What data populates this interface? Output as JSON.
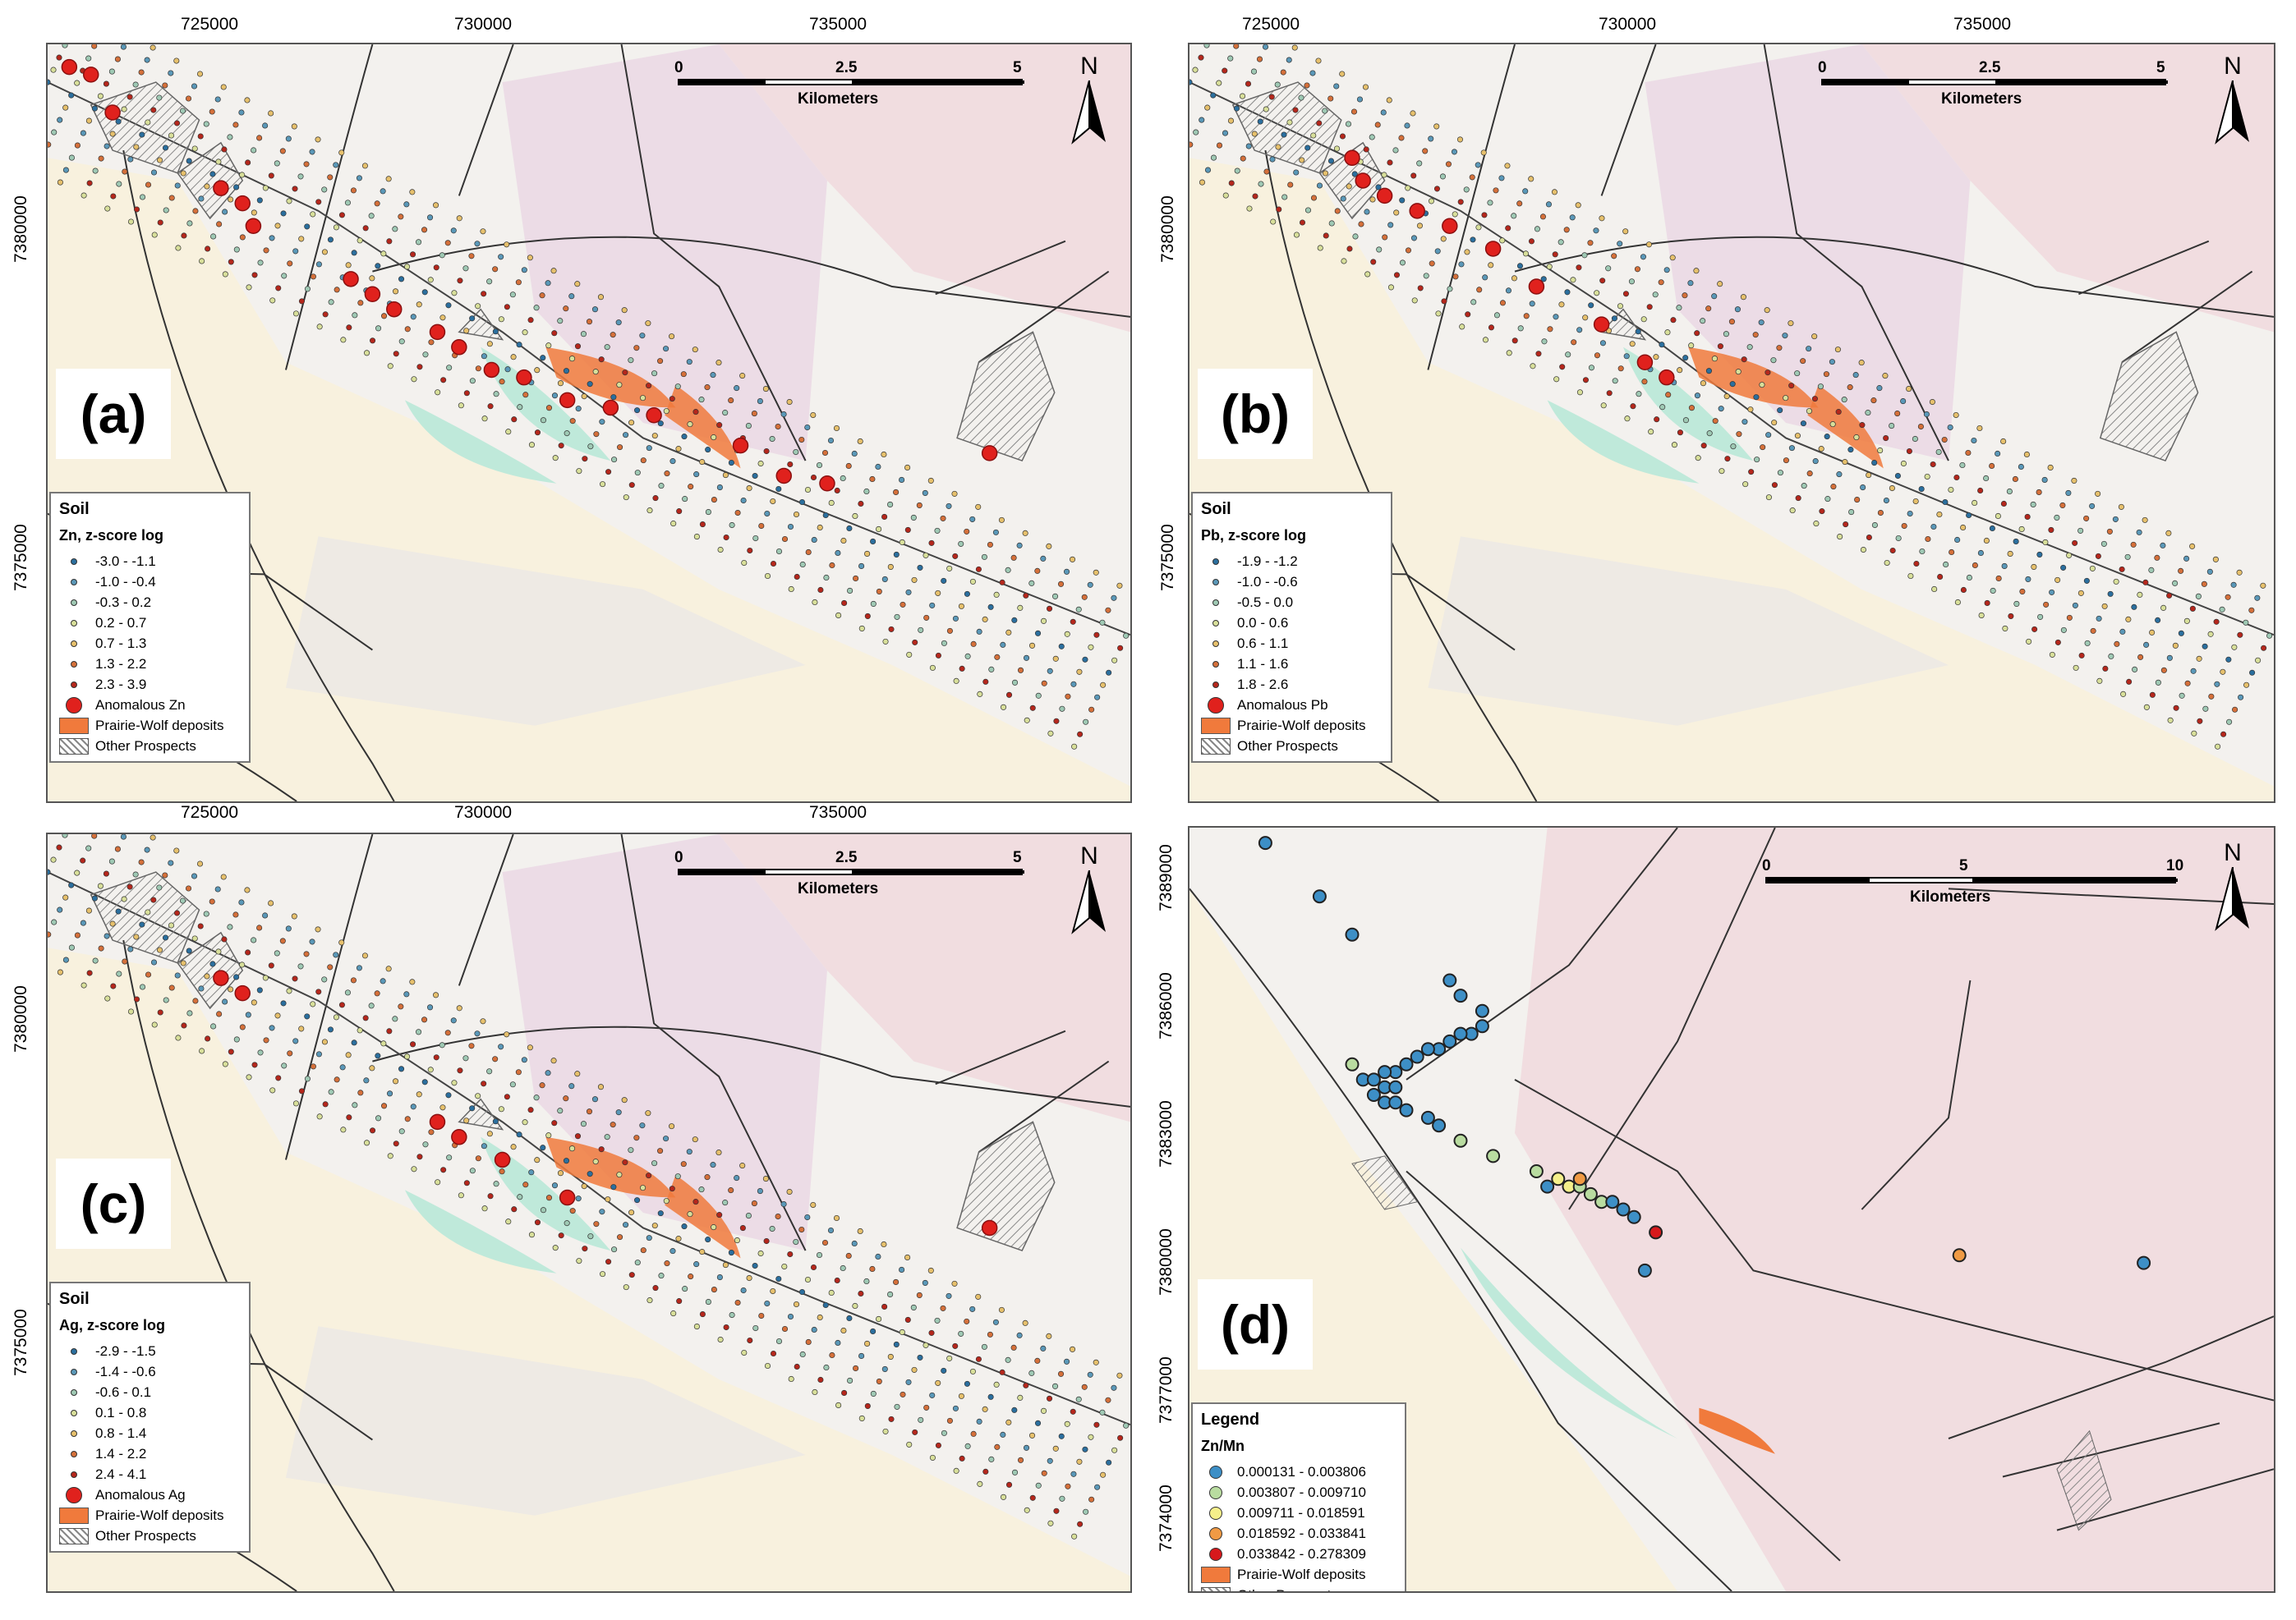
{
  "panels": [
    {
      "id": "a",
      "label": "(a)",
      "legend_title": "Soil",
      "legend_subtitle": "Zn, z-score log",
      "classes": [
        "-3.0 - -1.1",
        "-1.0 - -0.4",
        "-0.3 - 0.2",
        "0.2 - 0.7",
        "0.7 - 1.3",
        "1.3 - 2.2",
        "2.3 - 3.9"
      ],
      "anomalous": "Anomalous Zn",
      "deposits": "Prairie-Wolf deposits",
      "prospects": "Other Prospects",
      "x_ticks": [
        "725000",
        "730000",
        "735000"
      ],
      "y_ticks": [
        "7380000",
        "7375000"
      ],
      "scale": {
        "n0": "0",
        "n1": "2.5",
        "n2": "5",
        "unit": "Kilometers"
      },
      "north": "N"
    },
    {
      "id": "b",
      "label": "(b)",
      "legend_title": "Soil",
      "legend_subtitle": "Pb, z-score log",
      "classes": [
        "-1.9 - -1.2",
        "-1.0 - -0.6",
        "-0.5 - 0.0",
        "0.0 - 0.6",
        "0.6 - 1.1",
        "1.1 - 1.6",
        "1.8 - 2.6"
      ],
      "anomalous": "Anomalous Pb",
      "deposits": "Prairie-Wolf deposits",
      "prospects": "Other Prospects",
      "x_ticks": [
        "725000",
        "730000",
        "735000"
      ],
      "y_ticks": [
        "7380000",
        "7375000"
      ],
      "scale": {
        "n0": "0",
        "n1": "2.5",
        "n2": "5",
        "unit": "Kilometers"
      },
      "north": "N"
    },
    {
      "id": "c",
      "label": "(c)",
      "legend_title": "Soil",
      "legend_subtitle": "Ag, z-score log",
      "classes": [
        "-2.9 - -1.5",
        "-1.4 - -0.6",
        "-0.6 - 0.1",
        "0.1 - 0.8",
        "0.8 - 1.4",
        "1.4 - 2.2",
        "2.4 - 4.1"
      ],
      "anomalous": "Anomalous Ag",
      "deposits": "Prairie-Wolf deposits",
      "prospects": "Other Prospects",
      "x_ticks": [
        "725000",
        "730000",
        "735000"
      ],
      "y_ticks": [
        "7380000",
        "7375000"
      ],
      "scale": {
        "n0": "0",
        "n1": "2.5",
        "n2": "5",
        "unit": "Kilometers"
      },
      "north": "N"
    },
    {
      "id": "d",
      "label": "(d)",
      "legend_title": "Legend",
      "legend_subtitle": "Zn/Mn",
      "classes": [
        "0.000131 - 0.003806",
        "0.003807 - 0.009710",
        "0.009711 - 0.018591",
        "0.018592 - 0.033841",
        "0.033842 - 0.278309"
      ],
      "deposits": "Prairie-Wolf deposits",
      "prospects": "Other Prospects",
      "y_ticks": [
        "7389000",
        "7386000",
        "7383000",
        "7380000",
        "7377000",
        "7374000"
      ],
      "scale": {
        "n0": "0",
        "n1": "5",
        "n2": "10",
        "unit": "Kilometers"
      },
      "north": "N"
    }
  ],
  "colors": {
    "class_colors_7": [
      "#2b6f9e",
      "#5a98b8",
      "#9fc9b4",
      "#d8df9a",
      "#e6c06c",
      "#d5703a",
      "#b5271c"
    ],
    "class_colors_5": [
      "#3d8fc6",
      "#b9dca0",
      "#f5ef8a",
      "#f09a44",
      "#d7191c"
    ],
    "anomalous": "#e0211d",
    "deposit_fill": "#f07a3c",
    "bg": "#f3f1ee",
    "pink": "#f1dde0",
    "cream": "#f8f1de",
    "teal": "#bfe9da"
  }
}
